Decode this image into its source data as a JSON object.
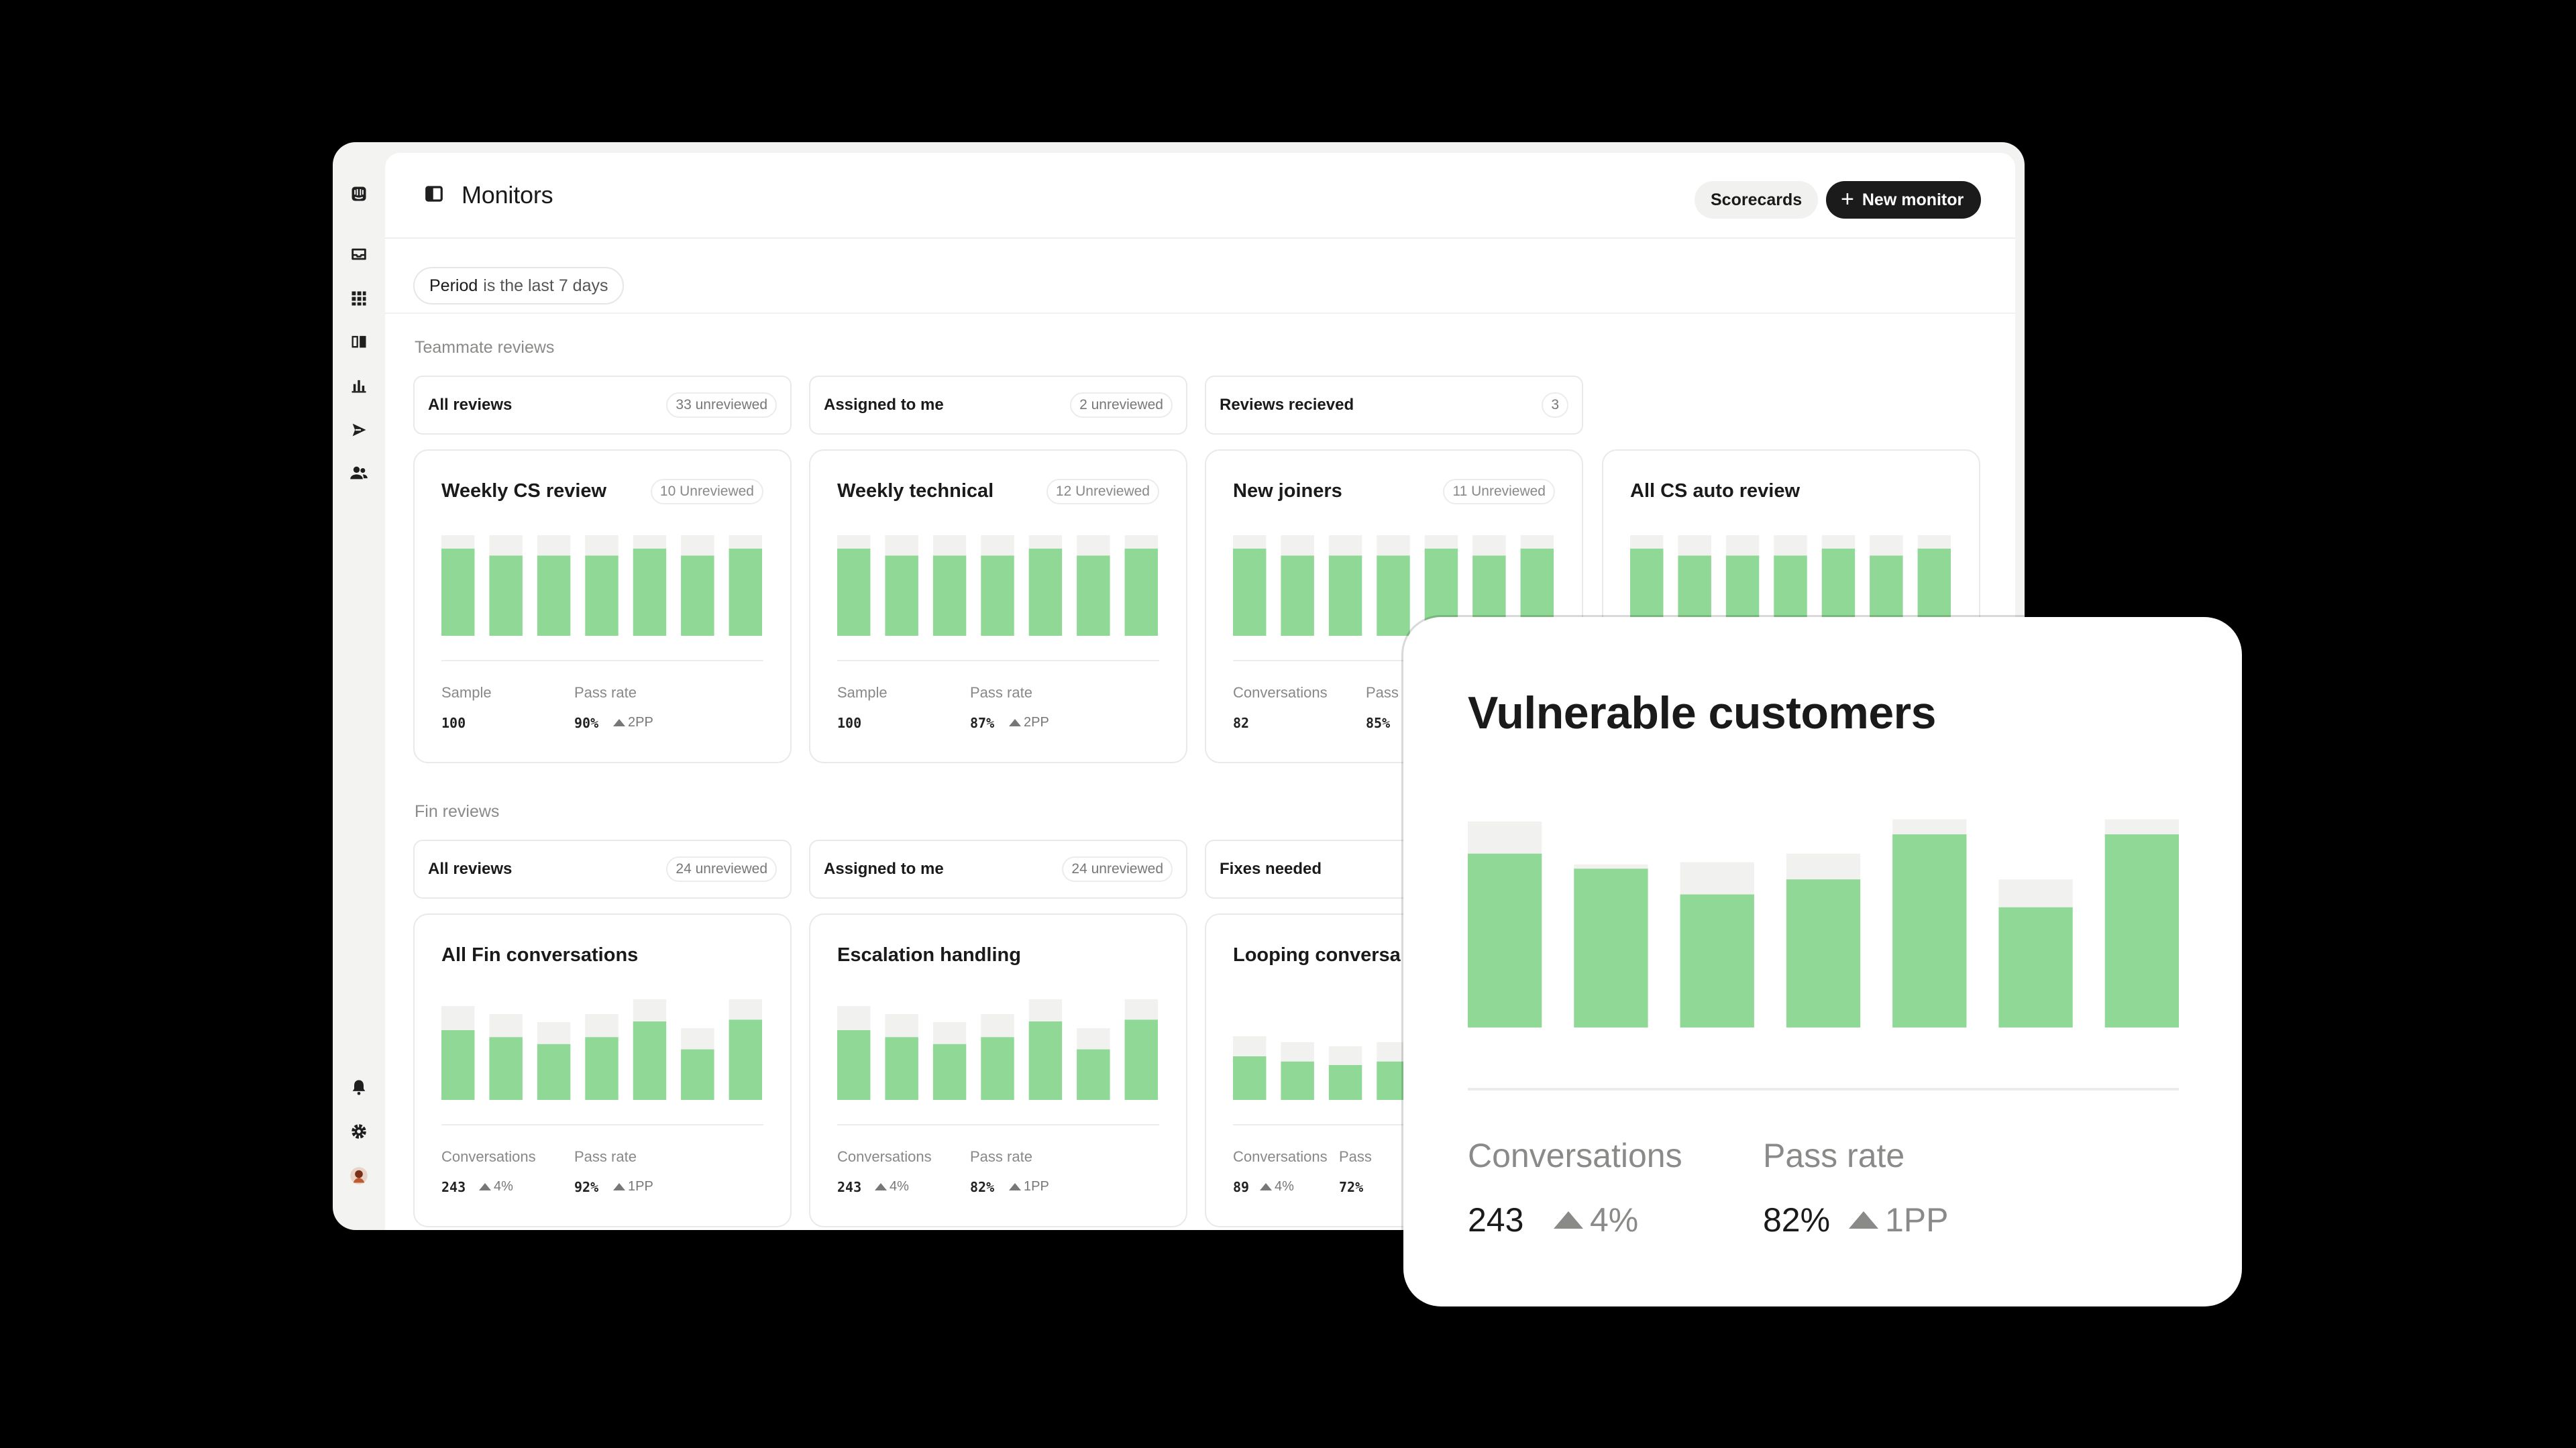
{
  "header": {
    "title": "Monitors",
    "scorecards_label": "Scorecards",
    "new_monitor_label": "New monitor",
    "new_monitor_icon": "plus-icon"
  },
  "filter": {
    "period_key": "Period",
    "period_value": "is the last 7 days"
  },
  "sidebar": {
    "top_icons": [
      "logo-icon",
      "inbox-icon",
      "apps-grid-icon",
      "knowledge-book-icon",
      "reports-chart-icon",
      "outbound-send-icon",
      "contacts-people-icon"
    ],
    "bottom_icons": [
      "notifications-bell-icon",
      "settings-gear-icon",
      "avatar"
    ]
  },
  "colors": {
    "bar_fill": "#8fd896",
    "bar_track": "#f1f1ef",
    "accent_dark": "#1b1b1b"
  },
  "teammate": {
    "label": "Teammate reviews",
    "tabs": [
      {
        "label": "All reviews",
        "count": "33 unreviewed"
      },
      {
        "label": "Assigned to me",
        "count": "2 unreviewed"
      },
      {
        "label": "Reviews recieved",
        "count": "3"
      }
    ],
    "cards": [
      {
        "title": "Weekly CS review",
        "badge": "10 Unreviewed",
        "m1_label": "Sample",
        "m1_value": "100",
        "m1_delta": "",
        "m2_label": "Pass rate",
        "m2_value": "90%",
        "m2_delta": "2PP",
        "bars": [
          1.0,
          0.92,
          0.92,
          0.92,
          1.0,
          0.92,
          1.0
        ]
      },
      {
        "title": "Weekly technical",
        "badge": "12 Unreviewed",
        "m1_label": "Sample",
        "m1_value": "100",
        "m1_delta": "",
        "m2_label": "Pass rate",
        "m2_value": "87%",
        "m2_delta": "2PP",
        "bars": [
          1.0,
          0.92,
          0.92,
          0.92,
          1.0,
          0.92,
          1.0
        ]
      },
      {
        "title": "New joiners",
        "badge": "11 Unreviewed",
        "m1_label": "Conversations",
        "m1_value": "82",
        "m1_delta": "",
        "m2_label": "Pass",
        "m2_value": "85%",
        "m2_delta": "",
        "bars": [
          1.0,
          0.92,
          0.92,
          0.92,
          1.0,
          0.92,
          1.0
        ]
      },
      {
        "title": "All CS auto review",
        "badge": "",
        "m1_label": "",
        "m1_value": "",
        "m1_delta": "",
        "m2_label": "",
        "m2_value": "",
        "m2_delta": "",
        "bars": [
          1.0,
          0.92,
          0.92,
          0.92,
          1.0,
          0.92,
          1.0
        ]
      }
    ]
  },
  "fin": {
    "label": "Fin reviews",
    "tabs": [
      {
        "label": "All reviews",
        "count": "24 unreviewed"
      },
      {
        "label": "Assigned to me",
        "count": "24 unreviewed"
      },
      {
        "label": "Fixes needed",
        "count": ""
      }
    ],
    "cards": [
      {
        "title": "All Fin conversations",
        "badge": "",
        "m1_label": "Conversations",
        "m1_value": "243",
        "m1_delta": "4%",
        "m2_label": "Pass rate",
        "m2_value": "92%",
        "m2_delta": "1PP",
        "bars": [
          0.8,
          0.72,
          0.64,
          0.72,
          0.9,
          0.58,
          0.92
        ]
      },
      {
        "title": "Escalation handling",
        "badge": "",
        "m1_label": "Conversations",
        "m1_value": "243",
        "m1_delta": "4%",
        "m2_label": "Pass rate",
        "m2_value": "82%",
        "m2_delta": "1PP",
        "bars": [
          0.8,
          0.72,
          0.64,
          0.72,
          0.9,
          0.58,
          0.92
        ]
      },
      {
        "title": "Looping conversa",
        "badge": "",
        "m1_label": "Conversations",
        "m1_value": "89",
        "m1_delta": "4%",
        "m2_label": "Pass",
        "m2_value": "72%",
        "m2_delta": "",
        "bars": [
          0.5,
          0.44,
          0.4,
          0.44,
          0.55,
          0.36,
          0.55
        ]
      }
    ]
  },
  "featured": {
    "title": "Vulnerable customers",
    "m1_label": "Conversations",
    "m1_value": "243",
    "m1_delta": "4%",
    "m2_label": "Pass rate",
    "m2_value": "82%",
    "m2_delta": "1PP",
    "bars": [
      {
        "value": 0.81,
        "track": 0.96
      },
      {
        "value": 0.74,
        "track": 0.76
      },
      {
        "value": 0.62,
        "track": 0.77
      },
      {
        "value": 0.69,
        "track": 0.81
      },
      {
        "value": 0.9,
        "track": 0.97
      },
      {
        "value": 0.56,
        "track": 0.69
      },
      {
        "value": 0.9,
        "track": 0.97
      }
    ]
  }
}
